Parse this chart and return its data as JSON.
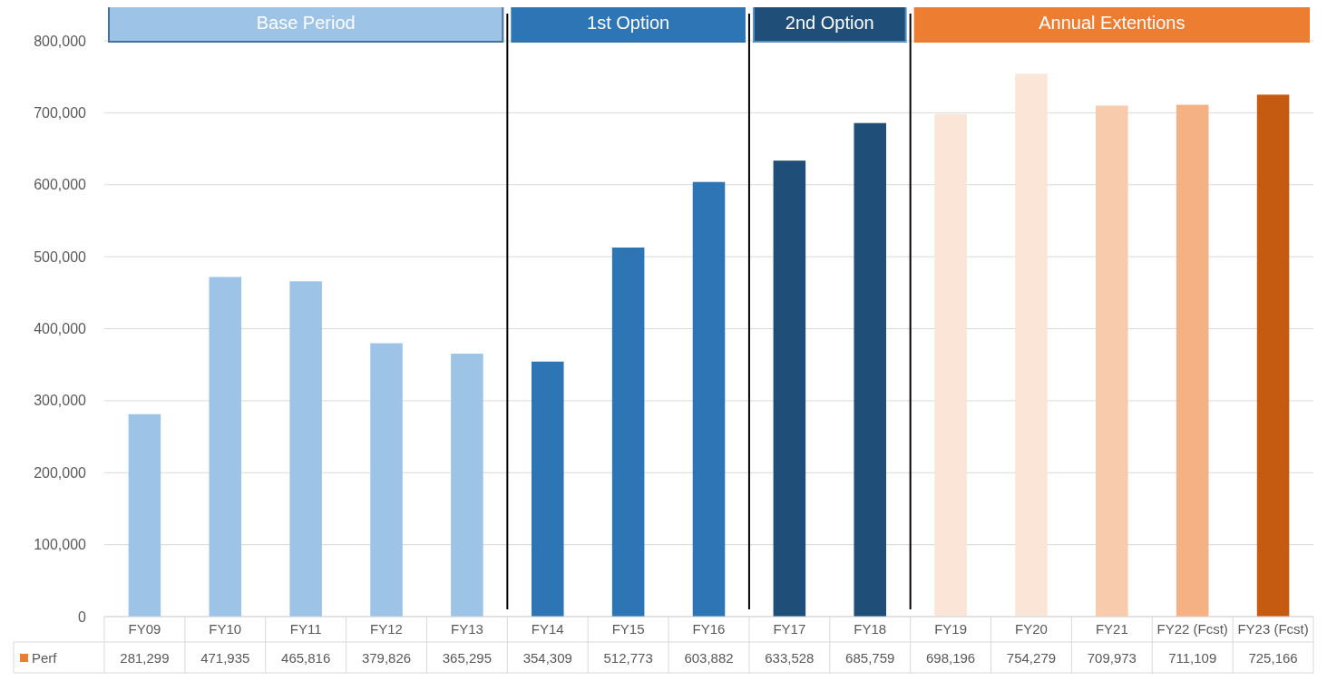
{
  "chart_data": {
    "type": "bar",
    "categories": [
      "FY09",
      "FY10",
      "FY11",
      "FY12",
      "FY13",
      "FY14",
      "FY15",
      "FY16",
      "FY17",
      "FY18",
      "FY19",
      "FY20",
      "FY21",
      "FY22 (Fcst)",
      "FY23 (Fcst)"
    ],
    "series": [
      {
        "name": "Perf",
        "color": "#ed7d31",
        "colors": [
          "#9dc3e6",
          "#9dc3e6",
          "#9dc3e6",
          "#9dc3e6",
          "#9dc3e6",
          "#2e75b6",
          "#2e75b6",
          "#2e75b6",
          "#1f4e79",
          "#1f4e79",
          "#fbe5d6",
          "#fbe5d6",
          "#f8cbad",
          "#f4b183",
          "#c55a11"
        ],
        "values": [
          281299,
          471935,
          465816,
          379826,
          365295,
          354309,
          512773,
          603882,
          633528,
          685759,
          698196,
          754279,
          709973,
          711109,
          725166
        ],
        "value_labels": [
          "281,299",
          "471,935",
          "465,816",
          "379,826",
          "365,295",
          "354,309",
          "512,773",
          "603,882",
          "633,528",
          "685,759",
          "698,196",
          "754,279",
          "709,973",
          "711,109",
          "725,166"
        ]
      }
    ],
    "ylim": [
      0,
      800000
    ],
    "yticks": [
      0,
      {
        "value": 100000,
        "label": "100,000"
      },
      {
        "value": 200000,
        "label": "200,000"
      },
      {
        "value": 300000,
        "label": "300,000"
      },
      {
        "value": 400000,
        "label": "400,000"
      },
      {
        "value": 500000,
        "label": "500,000"
      },
      {
        "value": 600000,
        "label": "600,000"
      },
      {
        "value": 700000,
        "label": "700,000"
      },
      {
        "value": 800000,
        "label": "800,000"
      }
    ],
    "grid": "y",
    "annotations": [
      "Base Period",
      "1st Option",
      "2nd Option",
      "Annual Extentions"
    ]
  }
}
